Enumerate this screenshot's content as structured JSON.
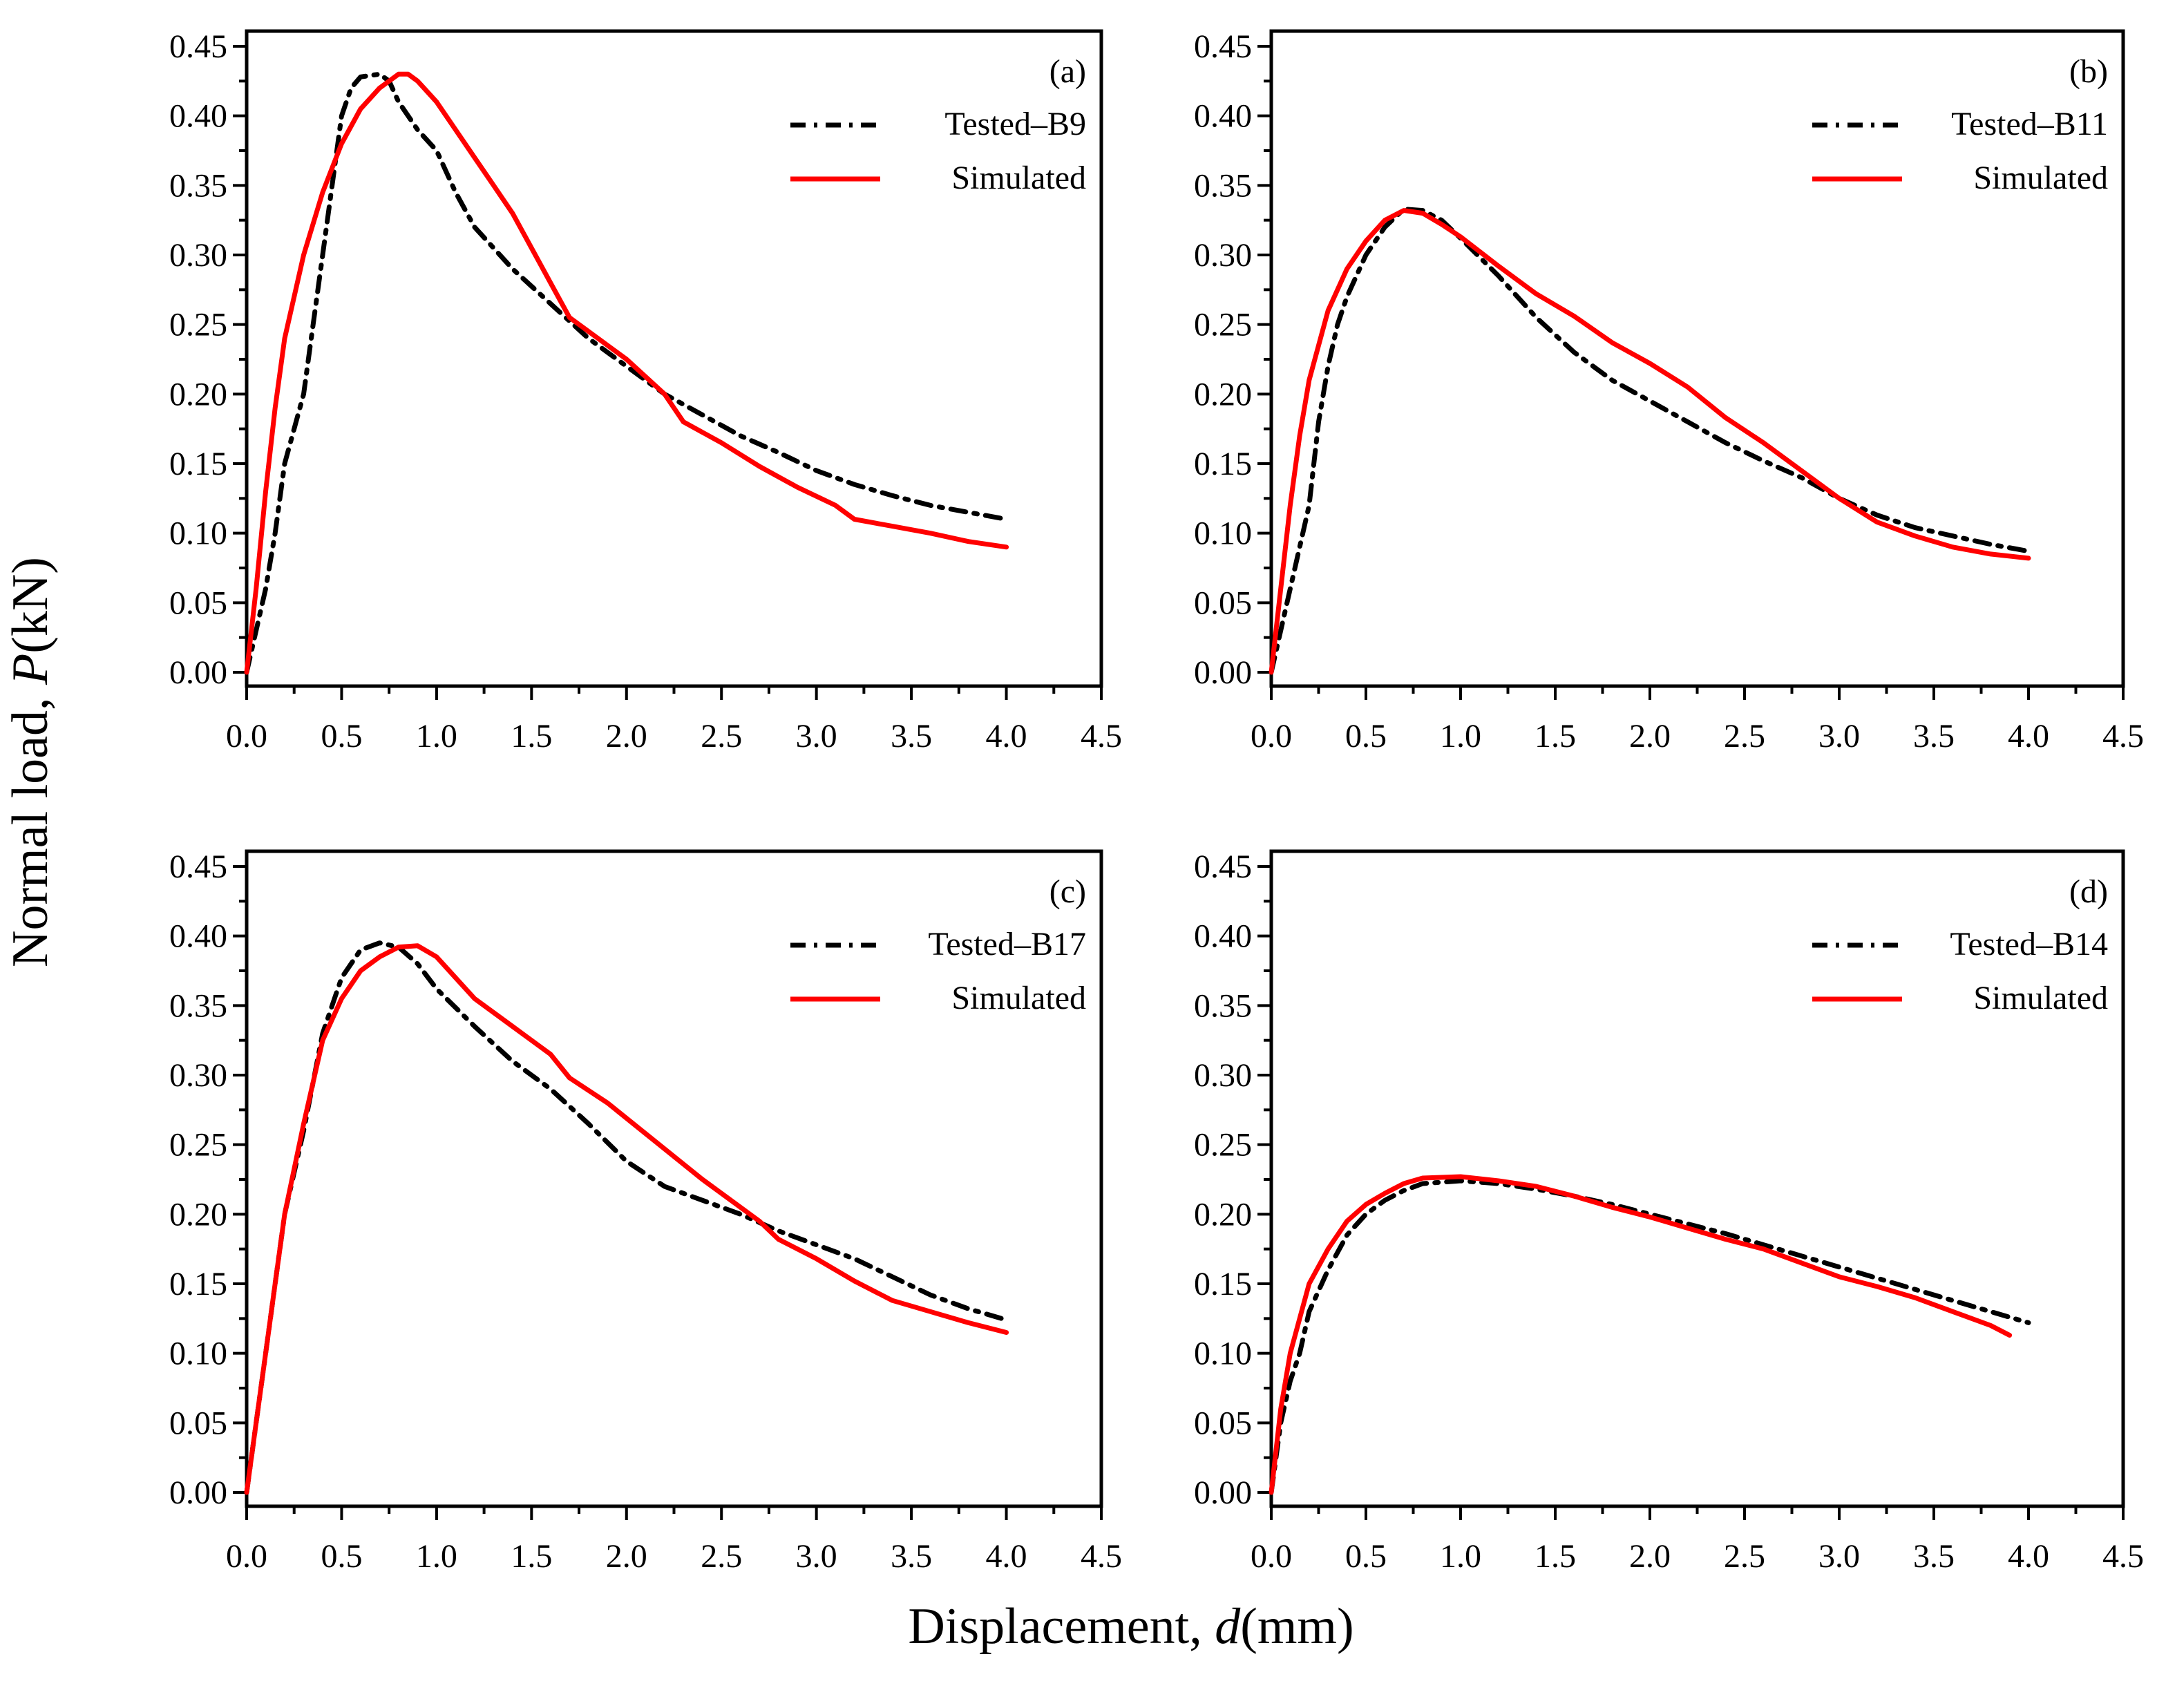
{
  "figure": {
    "ylabel_prefix": "Normal load, ",
    "ylabel_var": "P",
    "ylabel_unit": "(kN)",
    "xlabel_prefix": "Displacement, ",
    "xlabel_var": "d",
    "xlabel_unit": "(mm)"
  },
  "colors": {
    "tested": "#000000",
    "simulated": "#ff0000"
  },
  "chart_data": [
    {
      "type": "line",
      "panel_label": "(a)",
      "xlim": [
        0,
        4.5
      ],
      "ylim": [
        0,
        0.45
      ],
      "xticks": [
        "0.0",
        "0.5",
        "1.0",
        "1.5",
        "2.0",
        "2.5",
        "3.0",
        "3.5",
        "4.0",
        "4.5"
      ],
      "yticks": [
        "0.00",
        "0.05",
        "0.10",
        "0.15",
        "0.20",
        "0.25",
        "0.30",
        "0.35",
        "0.40",
        "0.45"
      ],
      "legend_position": "top-right",
      "series": [
        {
          "name": "Tested–B9",
          "style": "dash-dot",
          "color": "#000000",
          "points": [
            [
              0,
              0
            ],
            [
              0.05,
              0.03
            ],
            [
              0.1,
              0.06
            ],
            [
              0.15,
              0.1
            ],
            [
              0.2,
              0.15
            ],
            [
              0.3,
              0.2
            ],
            [
              0.35,
              0.25
            ],
            [
              0.4,
              0.3
            ],
            [
              0.45,
              0.35
            ],
            [
              0.5,
              0.4
            ],
            [
              0.55,
              0.42
            ],
            [
              0.6,
              0.428
            ],
            [
              0.7,
              0.43
            ],
            [
              0.75,
              0.425
            ],
            [
              0.8,
              0.41
            ],
            [
              0.9,
              0.39
            ],
            [
              1.0,
              0.375
            ],
            [
              1.1,
              0.345
            ],
            [
              1.2,
              0.32
            ],
            [
              1.4,
              0.29
            ],
            [
              1.6,
              0.265
            ],
            [
              1.8,
              0.24
            ],
            [
              2.0,
              0.22
            ],
            [
              2.2,
              0.2
            ],
            [
              2.4,
              0.185
            ],
            [
              2.6,
              0.17
            ],
            [
              2.8,
              0.158
            ],
            [
              3.0,
              0.145
            ],
            [
              3.2,
              0.135
            ],
            [
              3.4,
              0.127
            ],
            [
              3.6,
              0.12
            ],
            [
              3.8,
              0.115
            ],
            [
              4.0,
              0.11
            ]
          ]
        },
        {
          "name": "Simulated",
          "style": "solid",
          "color": "#ff0000",
          "points": [
            [
              0,
              0
            ],
            [
              0.05,
              0.06
            ],
            [
              0.1,
              0.13
            ],
            [
              0.15,
              0.19
            ],
            [
              0.2,
              0.24
            ],
            [
              0.3,
              0.3
            ],
            [
              0.4,
              0.345
            ],
            [
              0.5,
              0.38
            ],
            [
              0.6,
              0.405
            ],
            [
              0.7,
              0.42
            ],
            [
              0.8,
              0.43
            ],
            [
              0.85,
              0.43
            ],
            [
              0.9,
              0.425
            ],
            [
              1.0,
              0.41
            ],
            [
              1.1,
              0.39
            ],
            [
              1.2,
              0.37
            ],
            [
              1.3,
              0.35
            ],
            [
              1.4,
              0.33
            ],
            [
              1.5,
              0.305
            ],
            [
              1.6,
              0.28
            ],
            [
              1.7,
              0.255
            ],
            [
              1.8,
              0.245
            ],
            [
              2.0,
              0.225
            ],
            [
              2.2,
              0.2
            ],
            [
              2.3,
              0.18
            ],
            [
              2.5,
              0.165
            ],
            [
              2.7,
              0.148
            ],
            [
              2.9,
              0.133
            ],
            [
              3.1,
              0.12
            ],
            [
              3.2,
              0.11
            ],
            [
              3.4,
              0.105
            ],
            [
              3.6,
              0.1
            ],
            [
              3.8,
              0.094
            ],
            [
              4.0,
              0.09
            ]
          ]
        }
      ]
    },
    {
      "type": "line",
      "panel_label": "(b)",
      "xlim": [
        0,
        4.5
      ],
      "ylim": [
        0,
        0.45
      ],
      "xticks": [
        "0.0",
        "0.5",
        "1.0",
        "1.5",
        "2.0",
        "2.5",
        "3.0",
        "3.5",
        "4.0",
        "4.5"
      ],
      "yticks": [
        "0.00",
        "0.05",
        "0.10",
        "0.15",
        "0.20",
        "0.25",
        "0.30",
        "0.35",
        "0.40",
        "0.45"
      ],
      "legend_position": "top-right",
      "series": [
        {
          "name": "Tested–B11",
          "style": "dash-dot",
          "color": "#000000",
          "points": [
            [
              0,
              0
            ],
            [
              0.05,
              0.03
            ],
            [
              0.1,
              0.06
            ],
            [
              0.15,
              0.09
            ],
            [
              0.2,
              0.12
            ],
            [
              0.25,
              0.18
            ],
            [
              0.3,
              0.22
            ],
            [
              0.35,
              0.25
            ],
            [
              0.4,
              0.27
            ],
            [
              0.5,
              0.3
            ],
            [
              0.6,
              0.32
            ],
            [
              0.7,
              0.333
            ],
            [
              0.8,
              0.332
            ],
            [
              0.9,
              0.325
            ],
            [
              1.0,
              0.312
            ],
            [
              1.2,
              0.285
            ],
            [
              1.4,
              0.255
            ],
            [
              1.6,
              0.23
            ],
            [
              1.8,
              0.21
            ],
            [
              2.0,
              0.195
            ],
            [
              2.2,
              0.18
            ],
            [
              2.4,
              0.165
            ],
            [
              2.6,
              0.152
            ],
            [
              2.8,
              0.14
            ],
            [
              3.0,
              0.125
            ],
            [
              3.2,
              0.113
            ],
            [
              3.4,
              0.104
            ],
            [
              3.6,
              0.098
            ],
            [
              3.8,
              0.092
            ],
            [
              4.0,
              0.087
            ]
          ]
        },
        {
          "name": "Simulated",
          "style": "solid",
          "color": "#ff0000",
          "points": [
            [
              0,
              0
            ],
            [
              0.05,
              0.06
            ],
            [
              0.1,
              0.12
            ],
            [
              0.15,
              0.17
            ],
            [
              0.2,
              0.21
            ],
            [
              0.3,
              0.26
            ],
            [
              0.4,
              0.29
            ],
            [
              0.5,
              0.31
            ],
            [
              0.6,
              0.325
            ],
            [
              0.7,
              0.332
            ],
            [
              0.8,
              0.33
            ],
            [
              0.9,
              0.322
            ],
            [
              1.0,
              0.313
            ],
            [
              1.2,
              0.292
            ],
            [
              1.4,
              0.272
            ],
            [
              1.6,
              0.256
            ],
            [
              1.8,
              0.237
            ],
            [
              2.0,
              0.222
            ],
            [
              2.2,
              0.205
            ],
            [
              2.4,
              0.183
            ],
            [
              2.6,
              0.165
            ],
            [
              2.8,
              0.145
            ],
            [
              3.0,
              0.125
            ],
            [
              3.2,
              0.108
            ],
            [
              3.4,
              0.098
            ],
            [
              3.6,
              0.09
            ],
            [
              3.8,
              0.085
            ],
            [
              4.0,
              0.082
            ]
          ]
        }
      ]
    },
    {
      "type": "line",
      "panel_label": "(c)",
      "xlim": [
        0,
        4.5
      ],
      "ylim": [
        0,
        0.45
      ],
      "xticks": [
        "0.0",
        "0.5",
        "1.0",
        "1.5",
        "2.0",
        "2.5",
        "3.0",
        "3.5",
        "4.0",
        "4.5"
      ],
      "yticks": [
        "0.00",
        "0.05",
        "0.10",
        "0.15",
        "0.20",
        "0.25",
        "0.30",
        "0.35",
        "0.40",
        "0.45"
      ],
      "legend_position": "top-right",
      "series": [
        {
          "name": "Tested–B17",
          "style": "dash-dot",
          "color": "#000000",
          "points": [
            [
              0,
              0
            ],
            [
              0.05,
              0.05
            ],
            [
              0.1,
              0.1
            ],
            [
              0.15,
              0.15
            ],
            [
              0.2,
              0.2
            ],
            [
              0.3,
              0.26
            ],
            [
              0.4,
              0.33
            ],
            [
              0.5,
              0.37
            ],
            [
              0.6,
              0.39
            ],
            [
              0.7,
              0.395
            ],
            [
              0.8,
              0.392
            ],
            [
              0.9,
              0.38
            ],
            [
              1.0,
              0.362
            ],
            [
              1.2,
              0.335
            ],
            [
              1.4,
              0.31
            ],
            [
              1.6,
              0.29
            ],
            [
              1.8,
              0.265
            ],
            [
              2.0,
              0.238
            ],
            [
              2.2,
              0.22
            ],
            [
              2.4,
              0.21
            ],
            [
              2.6,
              0.2
            ],
            [
              2.8,
              0.188
            ],
            [
              3.0,
              0.178
            ],
            [
              3.2,
              0.168
            ],
            [
              3.4,
              0.155
            ],
            [
              3.6,
              0.142
            ],
            [
              3.8,
              0.132
            ],
            [
              4.0,
              0.124
            ]
          ]
        },
        {
          "name": "Simulated",
          "style": "solid",
          "color": "#ff0000",
          "points": [
            [
              0,
              0
            ],
            [
              0.05,
              0.05
            ],
            [
              0.1,
              0.1
            ],
            [
              0.15,
              0.15
            ],
            [
              0.2,
              0.2
            ],
            [
              0.3,
              0.265
            ],
            [
              0.4,
              0.325
            ],
            [
              0.5,
              0.355
            ],
            [
              0.6,
              0.375
            ],
            [
              0.7,
              0.385
            ],
            [
              0.8,
              0.392
            ],
            [
              0.9,
              0.393
            ],
            [
              1.0,
              0.385
            ],
            [
              1.1,
              0.37
            ],
            [
              1.2,
              0.355
            ],
            [
              1.4,
              0.335
            ],
            [
              1.6,
              0.315
            ],
            [
              1.7,
              0.298
            ],
            [
              1.9,
              0.28
            ],
            [
              2.1,
              0.258
            ],
            [
              2.4,
              0.225
            ],
            [
              2.7,
              0.195
            ],
            [
              2.8,
              0.182
            ],
            [
              3.0,
              0.168
            ],
            [
              3.2,
              0.152
            ],
            [
              3.4,
              0.138
            ],
            [
              3.6,
              0.13
            ],
            [
              3.8,
              0.122
            ],
            [
              4.0,
              0.115
            ]
          ]
        }
      ]
    },
    {
      "type": "line",
      "panel_label": "(d)",
      "xlim": [
        0,
        4.5
      ],
      "ylim": [
        0,
        0.45
      ],
      "xticks": [
        "0.0",
        "0.5",
        "1.0",
        "1.5",
        "2.0",
        "2.5",
        "3.0",
        "3.5",
        "4.0",
        "4.5"
      ],
      "yticks": [
        "0.00",
        "0.05",
        "0.10",
        "0.15",
        "0.20",
        "0.25",
        "0.30",
        "0.35",
        "0.40",
        "0.45"
      ],
      "legend_position": "top-right",
      "series": [
        {
          "name": "Tested–B14",
          "style": "dash-dot",
          "color": "#000000",
          "points": [
            [
              0,
              0
            ],
            [
              0.05,
              0.05
            ],
            [
              0.1,
              0.08
            ],
            [
              0.15,
              0.1
            ],
            [
              0.2,
              0.13
            ],
            [
              0.3,
              0.16
            ],
            [
              0.4,
              0.185
            ],
            [
              0.5,
              0.2
            ],
            [
              0.6,
              0.21
            ],
            [
              0.7,
              0.217
            ],
            [
              0.8,
              0.222
            ],
            [
              1.0,
              0.224
            ],
            [
              1.2,
              0.222
            ],
            [
              1.4,
              0.218
            ],
            [
              1.6,
              0.213
            ],
            [
              1.8,
              0.207
            ],
            [
              2.0,
              0.2
            ],
            [
              2.2,
              0.193
            ],
            [
              2.4,
              0.186
            ],
            [
              2.6,
              0.178
            ],
            [
              2.8,
              0.17
            ],
            [
              3.0,
              0.162
            ],
            [
              3.2,
              0.154
            ],
            [
              3.4,
              0.146
            ],
            [
              3.6,
              0.138
            ],
            [
              3.8,
              0.13
            ],
            [
              4.0,
              0.122
            ]
          ]
        },
        {
          "name": "Simulated",
          "style": "solid",
          "color": "#ff0000",
          "points": [
            [
              0,
              0
            ],
            [
              0.05,
              0.06
            ],
            [
              0.1,
              0.1
            ],
            [
              0.15,
              0.125
            ],
            [
              0.2,
              0.15
            ],
            [
              0.3,
              0.175
            ],
            [
              0.4,
              0.195
            ],
            [
              0.5,
              0.207
            ],
            [
              0.6,
              0.215
            ],
            [
              0.7,
              0.222
            ],
            [
              0.8,
              0.226
            ],
            [
              1.0,
              0.227
            ],
            [
              1.2,
              0.224
            ],
            [
              1.4,
              0.22
            ],
            [
              1.6,
              0.213
            ],
            [
              1.8,
              0.205
            ],
            [
              2.0,
              0.198
            ],
            [
              2.2,
              0.19
            ],
            [
              2.4,
              0.182
            ],
            [
              2.6,
              0.175
            ],
            [
              2.8,
              0.165
            ],
            [
              3.0,
              0.155
            ],
            [
              3.2,
              0.148
            ],
            [
              3.4,
              0.14
            ],
            [
              3.6,
              0.13
            ],
            [
              3.8,
              0.12
            ],
            [
              3.9,
              0.113
            ]
          ]
        }
      ]
    }
  ]
}
